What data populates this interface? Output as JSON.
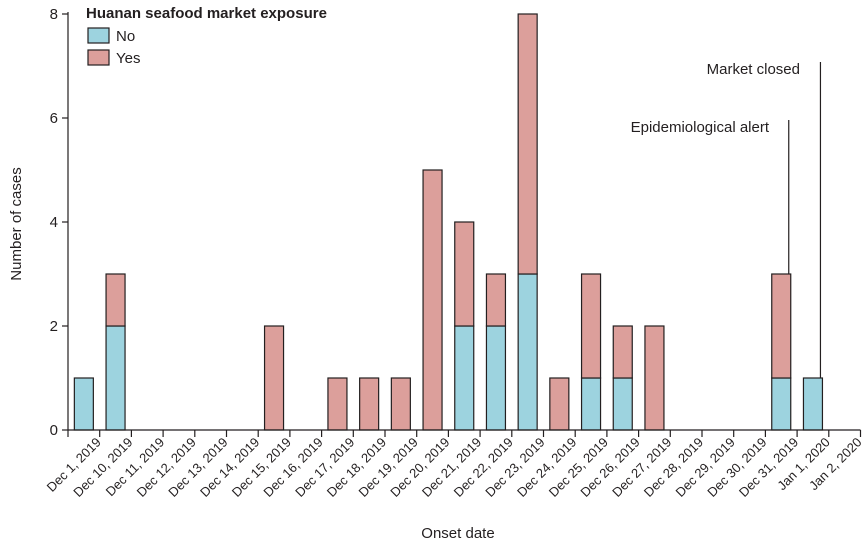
{
  "chart_data": {
    "type": "bar",
    "stacked": true,
    "xlabel": "Onset date",
    "ylabel": "Number of cases",
    "ylim": [
      0,
      8
    ],
    "yticks": [
      0,
      2,
      4,
      6,
      8
    ],
    "legend": {
      "title": "Huanan seafood market exposure",
      "position": "top-left"
    },
    "categories": [
      "Dec 1, 2019",
      "Dec 10, 2019",
      "Dec 11, 2019",
      "Dec 12, 2019",
      "Dec 13, 2019",
      "Dec 14, 2019",
      "Dec 15, 2019",
      "Dec 16, 2019",
      "Dec 17, 2019",
      "Dec 18, 2019",
      "Dec 19, 2019",
      "Dec 20, 2019",
      "Dec 21, 2019",
      "Dec 22, 2019",
      "Dec 23, 2019",
      "Dec 24, 2019",
      "Dec 25, 2019",
      "Dec 26, 2019",
      "Dec 27, 2019",
      "Dec 28, 2019",
      "Dec 29, 2019",
      "Dec 30, 2019",
      "Dec 31, 2019",
      "Jan 1, 2020",
      "Jan 2, 2020"
    ],
    "series": [
      {
        "name": "No",
        "color": "#9dd3df",
        "values": [
          1,
          2,
          0,
          0,
          0,
          0,
          0,
          0,
          0,
          0,
          0,
          0,
          2,
          2,
          3,
          0,
          1,
          1,
          0,
          0,
          0,
          0,
          1,
          1,
          0
        ]
      },
      {
        "name": "Yes",
        "color": "#dc9f9b",
        "values": [
          0,
          1,
          0,
          0,
          0,
          0,
          2,
          0,
          1,
          1,
          1,
          5,
          2,
          1,
          5,
          1,
          2,
          1,
          2,
          0,
          0,
          0,
          2,
          0,
          0
        ]
      }
    ],
    "annotations": [
      {
        "text": "Epidemiological alert",
        "category": "Dec 31, 2019"
      },
      {
        "text": "Market closed",
        "category": "Jan 1, 2020"
      }
    ],
    "grid": false
  }
}
